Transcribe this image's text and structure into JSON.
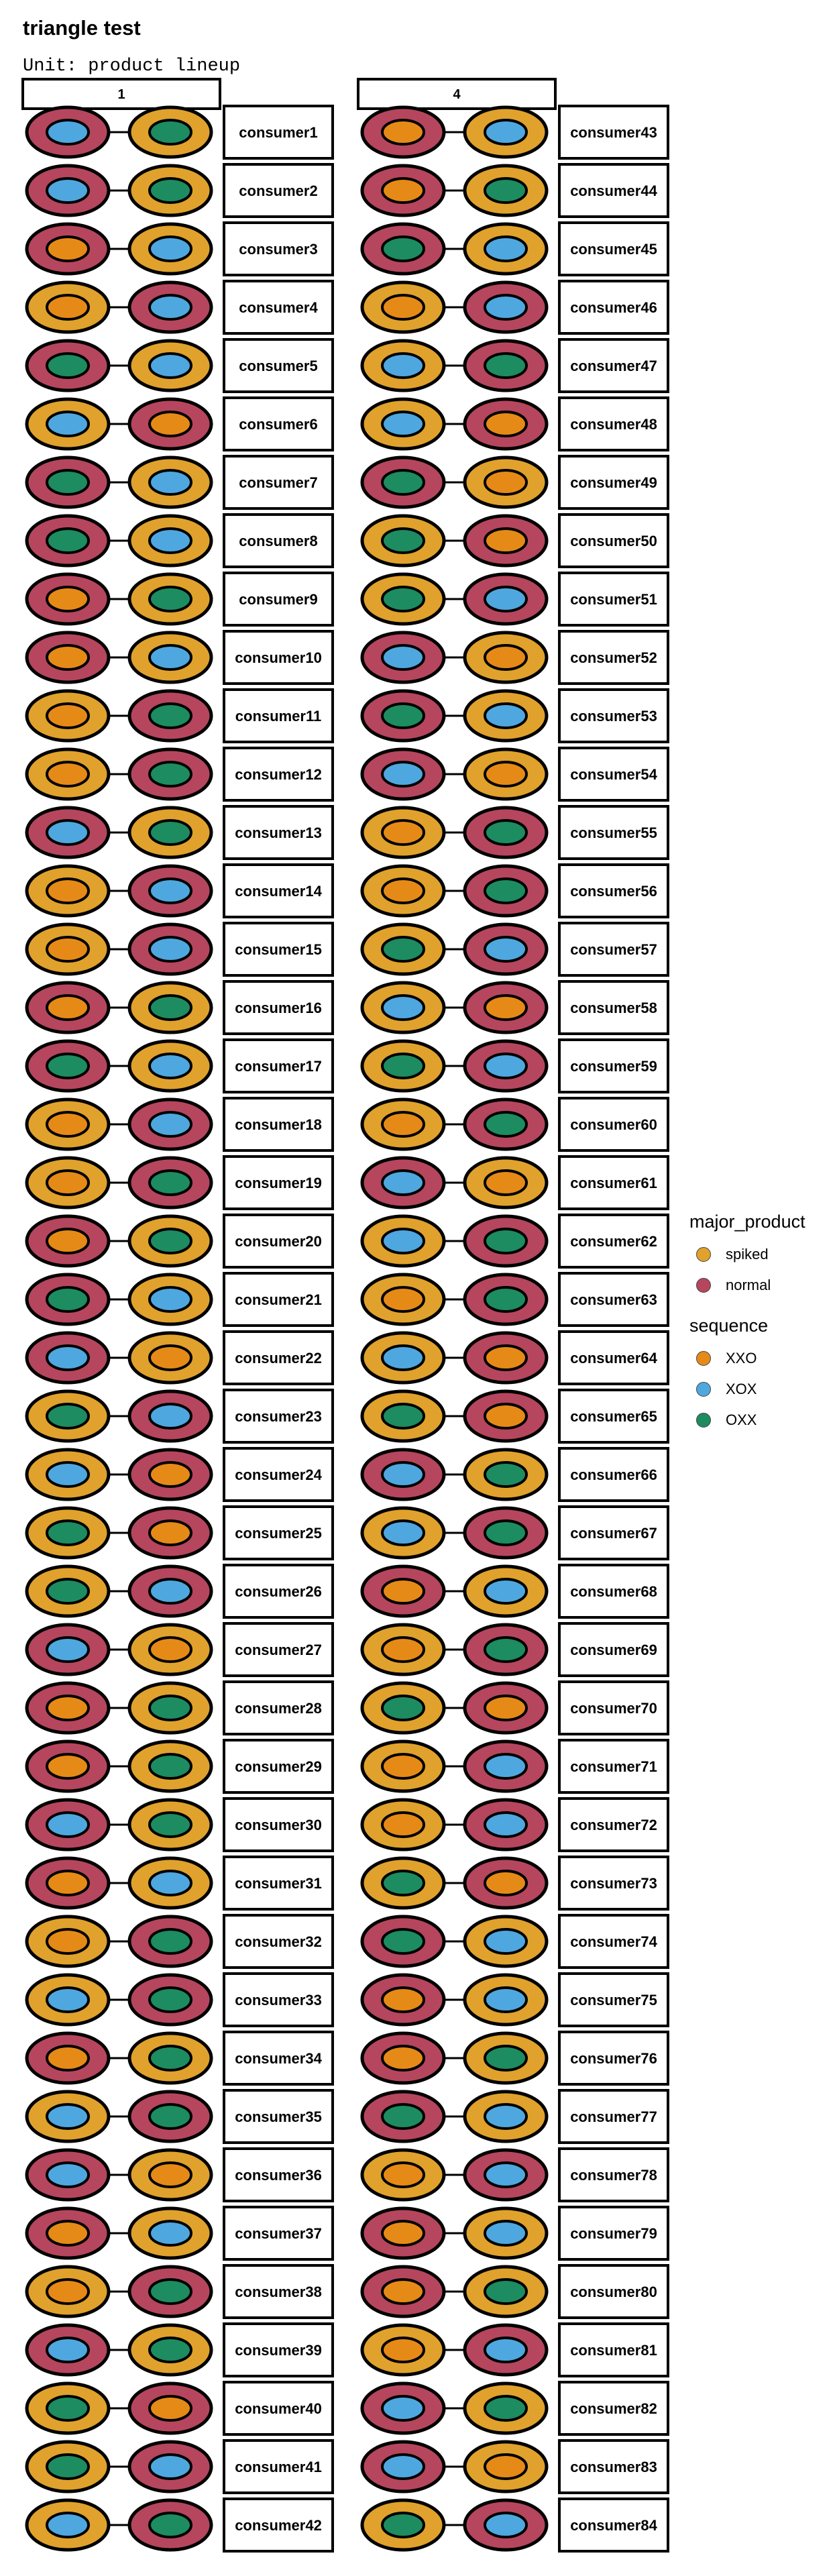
{
  "title": "triangle test",
  "subtitle": "Unit: product lineup",
  "colors": {
    "spiked": "#E0A22C",
    "normal": "#B5465E",
    "XXO": "#E68A17",
    "XOX": "#4FA7DF",
    "OXX": "#1D8C60"
  },
  "chart_data": {
    "type": "other",
    "panels": [
      {
        "label": "1",
        "consumers": [
          {
            "consumer": "consumer1",
            "outer": [
              "normal",
              "spiked"
            ],
            "inner": [
              "XOX",
              "OXX"
            ]
          },
          {
            "consumer": "consumer2",
            "outer": [
              "normal",
              "spiked"
            ],
            "inner": [
              "XOX",
              "OXX"
            ]
          },
          {
            "consumer": "consumer3",
            "outer": [
              "normal",
              "spiked"
            ],
            "inner": [
              "XXO",
              "XOX"
            ]
          },
          {
            "consumer": "consumer4",
            "outer": [
              "spiked",
              "normal"
            ],
            "inner": [
              "XXO",
              "XOX"
            ]
          },
          {
            "consumer": "consumer5",
            "outer": [
              "normal",
              "spiked"
            ],
            "inner": [
              "OXX",
              "XOX"
            ]
          },
          {
            "consumer": "consumer6",
            "outer": [
              "spiked",
              "normal"
            ],
            "inner": [
              "XOX",
              "XXO"
            ]
          },
          {
            "consumer": "consumer7",
            "outer": [
              "normal",
              "spiked"
            ],
            "inner": [
              "OXX",
              "XOX"
            ]
          },
          {
            "consumer": "consumer8",
            "outer": [
              "normal",
              "spiked"
            ],
            "inner": [
              "OXX",
              "XOX"
            ]
          },
          {
            "consumer": "consumer9",
            "outer": [
              "normal",
              "spiked"
            ],
            "inner": [
              "XXO",
              "OXX"
            ]
          },
          {
            "consumer": "consumer10",
            "outer": [
              "normal",
              "spiked"
            ],
            "inner": [
              "XXO",
              "XOX"
            ]
          },
          {
            "consumer": "consumer11",
            "outer": [
              "spiked",
              "normal"
            ],
            "inner": [
              "XXO",
              "OXX"
            ]
          },
          {
            "consumer": "consumer12",
            "outer": [
              "spiked",
              "normal"
            ],
            "inner": [
              "XXO",
              "OXX"
            ]
          },
          {
            "consumer": "consumer13",
            "outer": [
              "normal",
              "spiked"
            ],
            "inner": [
              "XOX",
              "OXX"
            ]
          },
          {
            "consumer": "consumer14",
            "outer": [
              "spiked",
              "normal"
            ],
            "inner": [
              "XXO",
              "XOX"
            ]
          },
          {
            "consumer": "consumer15",
            "outer": [
              "spiked",
              "normal"
            ],
            "inner": [
              "XXO",
              "XOX"
            ]
          },
          {
            "consumer": "consumer16",
            "outer": [
              "normal",
              "spiked"
            ],
            "inner": [
              "XXO",
              "OXX"
            ]
          },
          {
            "consumer": "consumer17",
            "outer": [
              "normal",
              "spiked"
            ],
            "inner": [
              "OXX",
              "XOX"
            ]
          },
          {
            "consumer": "consumer18",
            "outer": [
              "spiked",
              "normal"
            ],
            "inner": [
              "XXO",
              "XOX"
            ]
          },
          {
            "consumer": "consumer19",
            "outer": [
              "spiked",
              "normal"
            ],
            "inner": [
              "XXO",
              "OXX"
            ]
          },
          {
            "consumer": "consumer20",
            "outer": [
              "normal",
              "spiked"
            ],
            "inner": [
              "XXO",
              "OXX"
            ]
          },
          {
            "consumer": "consumer21",
            "outer": [
              "normal",
              "spiked"
            ],
            "inner": [
              "OXX",
              "XOX"
            ]
          },
          {
            "consumer": "consumer22",
            "outer": [
              "normal",
              "spiked"
            ],
            "inner": [
              "XOX",
              "XXO"
            ]
          },
          {
            "consumer": "consumer23",
            "outer": [
              "spiked",
              "normal"
            ],
            "inner": [
              "OXX",
              "XOX"
            ]
          },
          {
            "consumer": "consumer24",
            "outer": [
              "spiked",
              "normal"
            ],
            "inner": [
              "XOX",
              "XXO"
            ]
          },
          {
            "consumer": "consumer25",
            "outer": [
              "spiked",
              "normal"
            ],
            "inner": [
              "OXX",
              "XXO"
            ]
          },
          {
            "consumer": "consumer26",
            "outer": [
              "spiked",
              "normal"
            ],
            "inner": [
              "OXX",
              "XOX"
            ]
          },
          {
            "consumer": "consumer27",
            "outer": [
              "normal",
              "spiked"
            ],
            "inner": [
              "XOX",
              "XXO"
            ]
          },
          {
            "consumer": "consumer28",
            "outer": [
              "normal",
              "spiked"
            ],
            "inner": [
              "XXO",
              "OXX"
            ]
          },
          {
            "consumer": "consumer29",
            "outer": [
              "normal",
              "spiked"
            ],
            "inner": [
              "XXO",
              "OXX"
            ]
          },
          {
            "consumer": "consumer30",
            "outer": [
              "normal",
              "spiked"
            ],
            "inner": [
              "XOX",
              "OXX"
            ]
          },
          {
            "consumer": "consumer31",
            "outer": [
              "normal",
              "spiked"
            ],
            "inner": [
              "XXO",
              "XOX"
            ]
          },
          {
            "consumer": "consumer32",
            "outer": [
              "spiked",
              "normal"
            ],
            "inner": [
              "XXO",
              "OXX"
            ]
          },
          {
            "consumer": "consumer33",
            "outer": [
              "spiked",
              "normal"
            ],
            "inner": [
              "XOX",
              "OXX"
            ]
          },
          {
            "consumer": "consumer34",
            "outer": [
              "normal",
              "spiked"
            ],
            "inner": [
              "XXO",
              "OXX"
            ]
          },
          {
            "consumer": "consumer35",
            "outer": [
              "spiked",
              "normal"
            ],
            "inner": [
              "XOX",
              "OXX"
            ]
          },
          {
            "consumer": "consumer36",
            "outer": [
              "normal",
              "spiked"
            ],
            "inner": [
              "XOX",
              "XXO"
            ]
          },
          {
            "consumer": "consumer37",
            "outer": [
              "normal",
              "spiked"
            ],
            "inner": [
              "XXO",
              "XOX"
            ]
          },
          {
            "consumer": "consumer38",
            "outer": [
              "spiked",
              "normal"
            ],
            "inner": [
              "XXO",
              "OXX"
            ]
          },
          {
            "consumer": "consumer39",
            "outer": [
              "normal",
              "spiked"
            ],
            "inner": [
              "XOX",
              "OXX"
            ]
          },
          {
            "consumer": "consumer40",
            "outer": [
              "spiked",
              "normal"
            ],
            "inner": [
              "OXX",
              "XXO"
            ]
          },
          {
            "consumer": "consumer41",
            "outer": [
              "spiked",
              "normal"
            ],
            "inner": [
              "OXX",
              "XOX"
            ]
          },
          {
            "consumer": "consumer42",
            "outer": [
              "spiked",
              "normal"
            ],
            "inner": [
              "XOX",
              "OXX"
            ]
          }
        ]
      },
      {
        "label": "4",
        "consumers": [
          {
            "consumer": "consumer43",
            "outer": [
              "normal",
              "spiked"
            ],
            "inner": [
              "XXO",
              "XOX"
            ]
          },
          {
            "consumer": "consumer44",
            "outer": [
              "normal",
              "spiked"
            ],
            "inner": [
              "XXO",
              "OXX"
            ]
          },
          {
            "consumer": "consumer45",
            "outer": [
              "normal",
              "spiked"
            ],
            "inner": [
              "OXX",
              "XOX"
            ]
          },
          {
            "consumer": "consumer46",
            "outer": [
              "spiked",
              "normal"
            ],
            "inner": [
              "XXO",
              "XOX"
            ]
          },
          {
            "consumer": "consumer47",
            "outer": [
              "spiked",
              "normal"
            ],
            "inner": [
              "XOX",
              "OXX"
            ]
          },
          {
            "consumer": "consumer48",
            "outer": [
              "spiked",
              "normal"
            ],
            "inner": [
              "XOX",
              "XXO"
            ]
          },
          {
            "consumer": "consumer49",
            "outer": [
              "normal",
              "spiked"
            ],
            "inner": [
              "OXX",
              "XXO"
            ]
          },
          {
            "consumer": "consumer50",
            "outer": [
              "spiked",
              "normal"
            ],
            "inner": [
              "OXX",
              "XXO"
            ]
          },
          {
            "consumer": "consumer51",
            "outer": [
              "spiked",
              "normal"
            ],
            "inner": [
              "OXX",
              "XOX"
            ]
          },
          {
            "consumer": "consumer52",
            "outer": [
              "normal",
              "spiked"
            ],
            "inner": [
              "XOX",
              "XXO"
            ]
          },
          {
            "consumer": "consumer53",
            "outer": [
              "normal",
              "spiked"
            ],
            "inner": [
              "OXX",
              "XOX"
            ]
          },
          {
            "consumer": "consumer54",
            "outer": [
              "normal",
              "spiked"
            ],
            "inner": [
              "XOX",
              "XXO"
            ]
          },
          {
            "consumer": "consumer55",
            "outer": [
              "spiked",
              "normal"
            ],
            "inner": [
              "XXO",
              "OXX"
            ]
          },
          {
            "consumer": "consumer56",
            "outer": [
              "spiked",
              "normal"
            ],
            "inner": [
              "XXO",
              "OXX"
            ]
          },
          {
            "consumer": "consumer57",
            "outer": [
              "spiked",
              "normal"
            ],
            "inner": [
              "OXX",
              "XOX"
            ]
          },
          {
            "consumer": "consumer58",
            "outer": [
              "spiked",
              "normal"
            ],
            "inner": [
              "XOX",
              "XXO"
            ]
          },
          {
            "consumer": "consumer59",
            "outer": [
              "spiked",
              "normal"
            ],
            "inner": [
              "OXX",
              "XOX"
            ]
          },
          {
            "consumer": "consumer60",
            "outer": [
              "spiked",
              "normal"
            ],
            "inner": [
              "XXO",
              "OXX"
            ]
          },
          {
            "consumer": "consumer61",
            "outer": [
              "normal",
              "spiked"
            ],
            "inner": [
              "XOX",
              "XXO"
            ]
          },
          {
            "consumer": "consumer62",
            "outer": [
              "spiked",
              "normal"
            ],
            "inner": [
              "XOX",
              "OXX"
            ]
          },
          {
            "consumer": "consumer63",
            "outer": [
              "spiked",
              "normal"
            ],
            "inner": [
              "XXO",
              "OXX"
            ]
          },
          {
            "consumer": "consumer64",
            "outer": [
              "spiked",
              "normal"
            ],
            "inner": [
              "XOX",
              "XXO"
            ]
          },
          {
            "consumer": "consumer65",
            "outer": [
              "spiked",
              "normal"
            ],
            "inner": [
              "OXX",
              "XXO"
            ]
          },
          {
            "consumer": "consumer66",
            "outer": [
              "normal",
              "spiked"
            ],
            "inner": [
              "XOX",
              "OXX"
            ]
          },
          {
            "consumer": "consumer67",
            "outer": [
              "spiked",
              "normal"
            ],
            "inner": [
              "XOX",
              "OXX"
            ]
          },
          {
            "consumer": "consumer68",
            "outer": [
              "normal",
              "spiked"
            ],
            "inner": [
              "XXO",
              "XOX"
            ]
          },
          {
            "consumer": "consumer69",
            "outer": [
              "spiked",
              "normal"
            ],
            "inner": [
              "XXO",
              "OXX"
            ]
          },
          {
            "consumer": "consumer70",
            "outer": [
              "spiked",
              "normal"
            ],
            "inner": [
              "OXX",
              "XXO"
            ]
          },
          {
            "consumer": "consumer71",
            "outer": [
              "spiked",
              "normal"
            ],
            "inner": [
              "XXO",
              "XOX"
            ]
          },
          {
            "consumer": "consumer72",
            "outer": [
              "spiked",
              "normal"
            ],
            "inner": [
              "XXO",
              "XOX"
            ]
          },
          {
            "consumer": "consumer73",
            "outer": [
              "spiked",
              "normal"
            ],
            "inner": [
              "OXX",
              "XXO"
            ]
          },
          {
            "consumer": "consumer74",
            "outer": [
              "normal",
              "spiked"
            ],
            "inner": [
              "OXX",
              "XOX"
            ]
          },
          {
            "consumer": "consumer75",
            "outer": [
              "normal",
              "spiked"
            ],
            "inner": [
              "XXO",
              "XOX"
            ]
          },
          {
            "consumer": "consumer76",
            "outer": [
              "normal",
              "spiked"
            ],
            "inner": [
              "XXO",
              "OXX"
            ]
          },
          {
            "consumer": "consumer77",
            "outer": [
              "normal",
              "spiked"
            ],
            "inner": [
              "OXX",
              "XOX"
            ]
          },
          {
            "consumer": "consumer78",
            "outer": [
              "spiked",
              "normal"
            ],
            "inner": [
              "XXO",
              "XOX"
            ]
          },
          {
            "consumer": "consumer79",
            "outer": [
              "normal",
              "spiked"
            ],
            "inner": [
              "XXO",
              "XOX"
            ]
          },
          {
            "consumer": "consumer80",
            "outer": [
              "normal",
              "spiked"
            ],
            "inner": [
              "XXO",
              "OXX"
            ]
          },
          {
            "consumer": "consumer81",
            "outer": [
              "spiked",
              "normal"
            ],
            "inner": [
              "XXO",
              "XOX"
            ]
          },
          {
            "consumer": "consumer82",
            "outer": [
              "normal",
              "spiked"
            ],
            "inner": [
              "XOX",
              "OXX"
            ]
          },
          {
            "consumer": "consumer83",
            "outer": [
              "normal",
              "spiked"
            ],
            "inner": [
              "XOX",
              "XXO"
            ]
          },
          {
            "consumer": "consumer84",
            "outer": [
              "spiked",
              "normal"
            ],
            "inner": [
              "OXX",
              "XOX"
            ]
          }
        ]
      }
    ],
    "legend": {
      "major_product": {
        "title": "major_product",
        "items": [
          "spiked",
          "normal"
        ]
      },
      "sequence": {
        "title": "sequence",
        "items": [
          "XXO",
          "XOX",
          "OXX"
        ]
      }
    }
  }
}
